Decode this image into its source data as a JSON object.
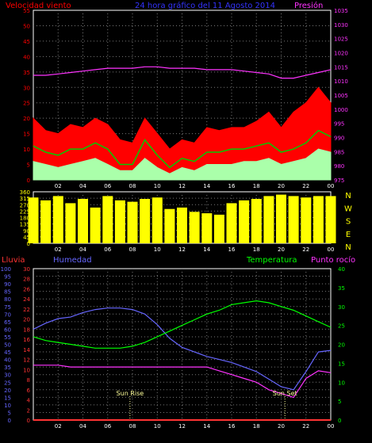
{
  "header": {
    "left": "Velocidad viento",
    "center": "24 hora gráfico del  11 Agosto 2014",
    "right": "Presión"
  },
  "labels": {
    "rain": "Lluvia",
    "humidity": "Humedad",
    "temperature": "Temperatura",
    "dewpoint": "Punto rocío",
    "sunrise": "Sun Rise",
    "sunset": "Sun Set"
  },
  "compass": [
    "N",
    "W",
    "S",
    "E",
    "N"
  ],
  "x_ticks": [
    "02",
    "04",
    "06",
    "08",
    "10",
    "12",
    "14",
    "16",
    "18",
    "20",
    "22",
    "00"
  ],
  "colors": {
    "wind_label": "#ff0000",
    "title": "#3333ff",
    "pressure": "#ff33ff",
    "rain": "#ff3333",
    "humidity": "#6666ff",
    "temperature": "#00ff00",
    "dewpoint": "#ff33ff",
    "direction": "#ffff00",
    "wind_avg": "#aaffaa",
    "wind_gust": "#ff0000",
    "wind_mid": "#00cc00",
    "sun": "#ffff99"
  },
  "chart_data": [
    {
      "type": "area",
      "name": "wind_pressure",
      "y_left_ticks": [
        "0",
        "5",
        "10",
        "15",
        "20",
        "25",
        "30",
        "35",
        "40",
        "45",
        "50",
        "55"
      ],
      "y_right_ticks": [
        "975",
        "980",
        "985",
        "990",
        "995",
        "1000",
        "1005",
        "1010",
        "1015",
        "1020",
        "1025",
        "1030",
        "1035"
      ],
      "ylim_left": [
        0,
        55
      ],
      "ylim_right": [
        975,
        1035
      ],
      "x": [
        0,
        1,
        2,
        3,
        4,
        5,
        6,
        7,
        8,
        9,
        10,
        11,
        12,
        13,
        14,
        15,
        16,
        17,
        18,
        19,
        20,
        21,
        22,
        23,
        24
      ],
      "series": [
        {
          "role": "pressure",
          "values": [
            1012,
            1012,
            1012.5,
            1013,
            1013.5,
            1014,
            1014.5,
            1014.5,
            1014.5,
            1015,
            1015,
            1014.5,
            1014.5,
            1014.5,
            1014,
            1014,
            1014,
            1013.5,
            1013,
            1012.5,
            1011,
            1011,
            1012,
            1013,
            1014
          ]
        },
        {
          "role": "wind_gust",
          "values": [
            20,
            16,
            15,
            18,
            17,
            20,
            18,
            13,
            12,
            20,
            15,
            10,
            13,
            12,
            17,
            16,
            17,
            17,
            19,
            22,
            17,
            22,
            25,
            30,
            25
          ]
        },
        {
          "role": "wind_mid",
          "values": [
            11,
            9,
            8,
            10,
            10,
            12,
            10,
            5,
            5,
            13,
            8,
            4,
            7,
            6,
            9,
            9,
            10,
            10,
            11,
            12,
            9,
            10,
            12,
            16,
            14
          ]
        },
        {
          "role": "wind_avg",
          "values": [
            6,
            5,
            4,
            5,
            6,
            7,
            5,
            3,
            3,
            7,
            4,
            2,
            4,
            3,
            5,
            5,
            5,
            6,
            6,
            7,
            5,
            6,
            7,
            10,
            9
          ]
        }
      ]
    },
    {
      "type": "bar",
      "name": "wind_direction",
      "y_ticks": [
        "360",
        "315",
        "270",
        "225",
        "180",
        "135",
        "90",
        "45",
        "0"
      ],
      "ylim": [
        0,
        360
      ],
      "x": [
        0,
        1,
        2,
        3,
        4,
        5,
        6,
        7,
        8,
        9,
        10,
        11,
        12,
        13,
        14,
        15,
        16,
        17,
        18,
        19,
        20,
        21,
        22,
        23,
        24
      ],
      "values": [
        320,
        300,
        330,
        280,
        310,
        250,
        330,
        300,
        290,
        310,
        320,
        240,
        250,
        220,
        210,
        200,
        280,
        300,
        310,
        330,
        340,
        330,
        320,
        330,
        330
      ]
    },
    {
      "type": "line",
      "name": "climate",
      "y_rain_ticks": [
        "0",
        "5",
        "10",
        "15",
        "20",
        "25",
        "30",
        "35",
        "40",
        "45",
        "50",
        "55",
        "60",
        "65",
        "70",
        "75",
        "80",
        "85",
        "90",
        "95",
        "100"
      ],
      "y_hum_ticks": [
        "0",
        "2",
        "4",
        "6",
        "8",
        "10",
        "12",
        "14",
        "16",
        "18",
        "20",
        "22",
        "24",
        "26",
        "28",
        "30"
      ],
      "y_temp_ticks": [
        "0",
        "5",
        "10",
        "15",
        "20",
        "25",
        "30",
        "35",
        "40"
      ],
      "ylim_humidity": [
        0,
        100
      ],
      "ylim_temperature": [
        0,
        40
      ],
      "x": [
        0,
        1,
        2,
        3,
        4,
        5,
        6,
        7,
        8,
        9,
        10,
        11,
        12,
        13,
        14,
        15,
        16,
        17,
        18,
        19,
        20,
        21,
        22,
        23,
        24
      ],
      "series": [
        {
          "role": "rain",
          "values": [
            0,
            0,
            0,
            0,
            0,
            0,
            0,
            0,
            0,
            0,
            0,
            0,
            0,
            0,
            0,
            0,
            0,
            0,
            0,
            0,
            0,
            0,
            0,
            0,
            0
          ]
        },
        {
          "role": "humidity",
          "values": [
            60,
            64,
            67,
            68,
            71,
            73,
            74,
            74,
            73,
            70,
            63,
            54,
            48,
            45,
            42,
            40,
            38,
            35,
            32,
            27,
            22,
            20,
            32,
            45,
            46
          ]
        },
        {
          "role": "temperature",
          "values": [
            22,
            21,
            20.5,
            20,
            19.5,
            19,
            19,
            19,
            19.5,
            20.5,
            22,
            23.5,
            25,
            26.5,
            28,
            29,
            30.5,
            31,
            31.5,
            31,
            30,
            29,
            27.5,
            26,
            24.5
          ]
        },
        {
          "role": "dewpoint",
          "values": [
            14.5,
            14.5,
            14.5,
            14,
            14,
            14,
            14,
            14,
            14,
            14,
            14,
            14,
            14,
            14,
            14,
            13,
            12,
            11,
            10,
            8,
            7,
            6,
            11,
            13,
            12.5
          ]
        }
      ],
      "events": [
        {
          "label": "Sun Rise",
          "x": 7.8
        },
        {
          "label": "Sun Set",
          "x": 20.3
        }
      ]
    }
  ]
}
